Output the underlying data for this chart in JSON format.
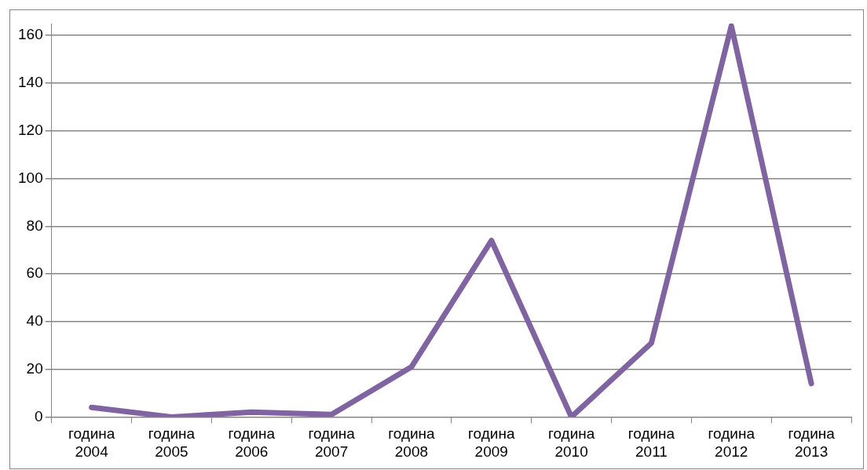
{
  "chart_data": {
    "type": "line",
    "categories": [
      "година 2004",
      "година 2005",
      "година 2006",
      "година 2007",
      "година 2008",
      "година 2009",
      "година 2010",
      "година 2011",
      "година 2012",
      "година 2013"
    ],
    "series": [
      {
        "color": "#8064a2",
        "values": [
          4,
          0,
          2,
          1,
          21,
          74,
          0,
          31,
          164,
          14
        ]
      }
    ],
    "ylim": [
      0,
      165
    ],
    "yticks": [
      0,
      20,
      40,
      60,
      80,
      100,
      120,
      140,
      160
    ],
    "grid": "y",
    "legend": false,
    "marker": "none",
    "line_style": "solid"
  }
}
